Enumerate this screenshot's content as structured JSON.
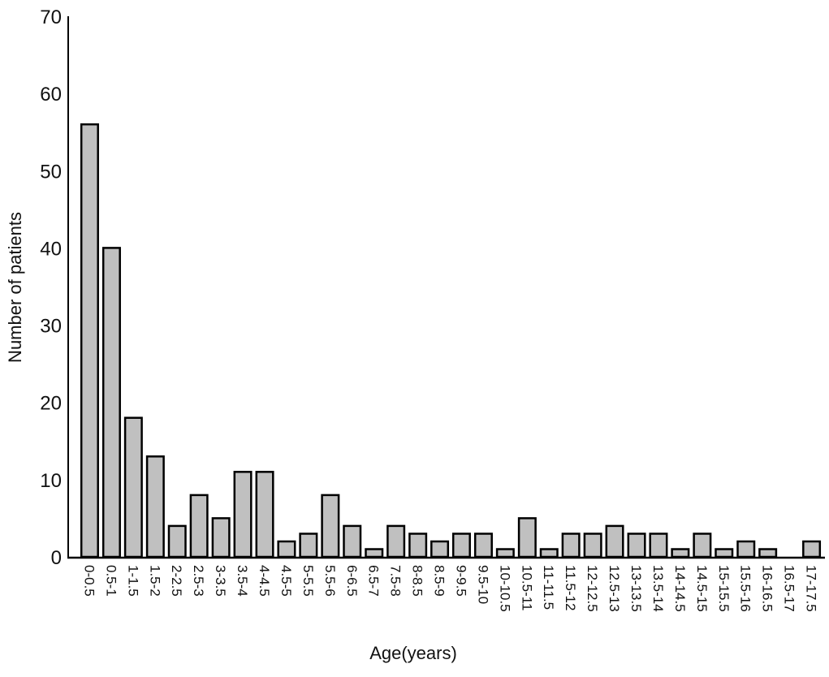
{
  "chart_data": {
    "type": "bar",
    "title": "",
    "xlabel": "Age(years)",
    "ylabel": "Number of patients",
    "ylim": [
      0,
      70
    ],
    "yticks": [
      0,
      10,
      20,
      30,
      40,
      50,
      60,
      70
    ],
    "grid": false,
    "legend": null,
    "bar_color": "#c0c0c0",
    "bar_edge_color": "#000000",
    "categories": [
      "0-0.5",
      "0.5-1",
      "1-1.5",
      "1.5-2",
      "2-2.5",
      "2.5-3",
      "3-3.5",
      "3.5-4",
      "4-4.5",
      "4.5-5",
      "5-5.5",
      "5.5-6",
      "6-6.5",
      "6.5-7",
      "7.5-8",
      "8-8.5",
      "8.5-9",
      "9-9.5",
      "9.5-10",
      "10-10.5",
      "10.5-11",
      "11-11.5",
      "11.5-12",
      "12-12.5",
      "12.5-13",
      "13-13.5",
      "13.5-14",
      "14-14.5",
      "14.5-15",
      "15-15.5",
      "15.5-16",
      "16-16.5",
      "16.5-17",
      "17-17.5"
    ],
    "values": [
      56,
      40,
      18,
      13,
      4,
      8,
      5,
      11,
      11,
      2,
      3,
      8,
      4,
      1,
      4,
      3,
      2,
      3,
      3,
      1,
      5,
      1,
      3,
      3,
      4,
      3,
      3,
      1,
      3,
      1,
      2,
      1,
      0,
      2
    ]
  }
}
